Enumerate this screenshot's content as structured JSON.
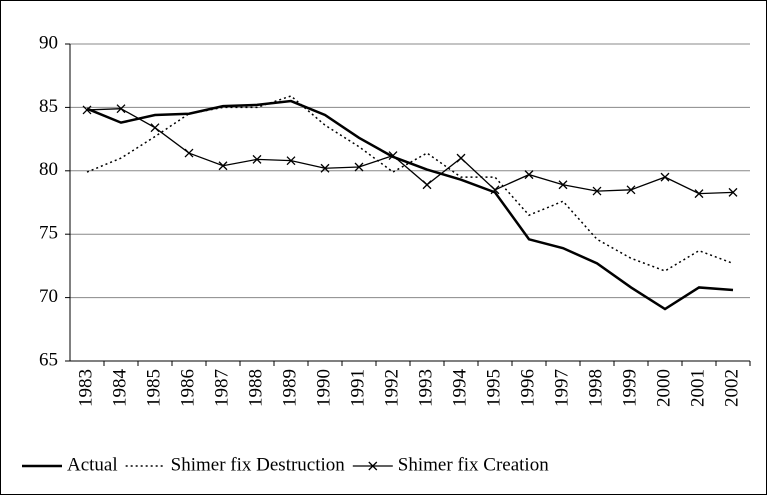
{
  "chart_data": {
    "type": "line",
    "categories": [
      "1983",
      "1984",
      "1985",
      "1986",
      "1987",
      "1988",
      "1989",
      "1990",
      "1991",
      "1992",
      "1993",
      "1994",
      "1995",
      "1996",
      "1997",
      "1998",
      "1999",
      "2000",
      "2001",
      "2002"
    ],
    "series": [
      {
        "name": "Actual",
        "color": "#000000",
        "style": "solid",
        "marker": "none",
        "values": [
          84.9,
          83.8,
          84.4,
          84.5,
          85.1,
          85.2,
          85.5,
          84.4,
          82.6,
          81.1,
          80.1,
          79.3,
          78.3,
          74.6,
          73.9,
          72.7,
          70.8,
          69.1,
          70.8,
          70.6
        ]
      },
      {
        "name": "Shimer fix Destruction",
        "color": "#000000",
        "style": "dotted",
        "marker": "none",
        "values": [
          79.9,
          81.0,
          82.7,
          84.5,
          85.0,
          85.0,
          85.9,
          83.6,
          81.9,
          79.9,
          81.4,
          79.5,
          79.5,
          76.5,
          77.6,
          74.6,
          73.1,
          72.1,
          73.7,
          72.7
        ]
      },
      {
        "name": "Shimer fix Creation",
        "color": "#000000",
        "style": "solid",
        "marker": "x",
        "values": [
          84.8,
          84.9,
          83.4,
          81.4,
          80.4,
          80.9,
          80.8,
          80.2,
          80.3,
          81.2,
          78.9,
          81.0,
          78.5,
          79.7,
          78.9,
          78.4,
          78.5,
          79.5,
          78.2,
          78.3
        ]
      }
    ],
    "ylim": [
      65,
      90
    ],
    "yticks": [
      65,
      70,
      75,
      80,
      85,
      90
    ],
    "grid": true,
    "legend": "bottom"
  }
}
